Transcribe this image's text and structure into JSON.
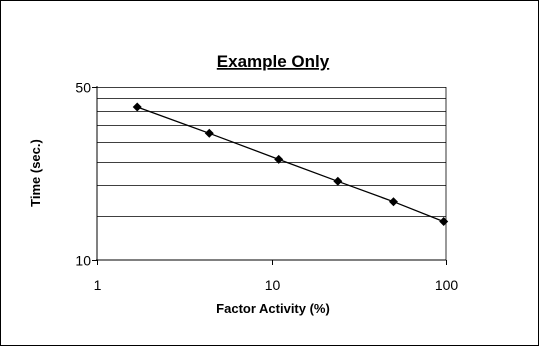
{
  "chart_data": {
    "type": "scatter",
    "title": "Example Only",
    "xlabel": "Factor Activity (%)",
    "ylabel": "Time (sec.)",
    "x_scale": "log",
    "y_scale": "log",
    "xlim": [
      1,
      100
    ],
    "ylim": [
      10,
      50
    ],
    "x_ticks": [
      {
        "value": 1,
        "label": "1"
      },
      {
        "value": 10,
        "label": "10"
      },
      {
        "value": 100,
        "label": "100"
      }
    ],
    "y_ticks": [
      {
        "value": 10,
        "label": "10"
      },
      {
        "value": 50,
        "label": "50"
      }
    ],
    "y_gridlines": [
      15,
      20,
      25,
      30,
      35,
      40,
      45,
      50
    ],
    "grid": "horizontal",
    "legend": "none",
    "series": [
      {
        "points": [
          {
            "x": 1.7,
            "y": 41.5
          },
          {
            "x": 4.4,
            "y": 32.5
          },
          {
            "x": 11.0,
            "y": 25.5
          },
          {
            "x": 24.0,
            "y": 20.8
          },
          {
            "x": 50.0,
            "y": 17.2
          },
          {
            "x": 97.0,
            "y": 14.3
          }
        ],
        "marker": "diamond",
        "line": true,
        "color": "#000000"
      }
    ]
  }
}
